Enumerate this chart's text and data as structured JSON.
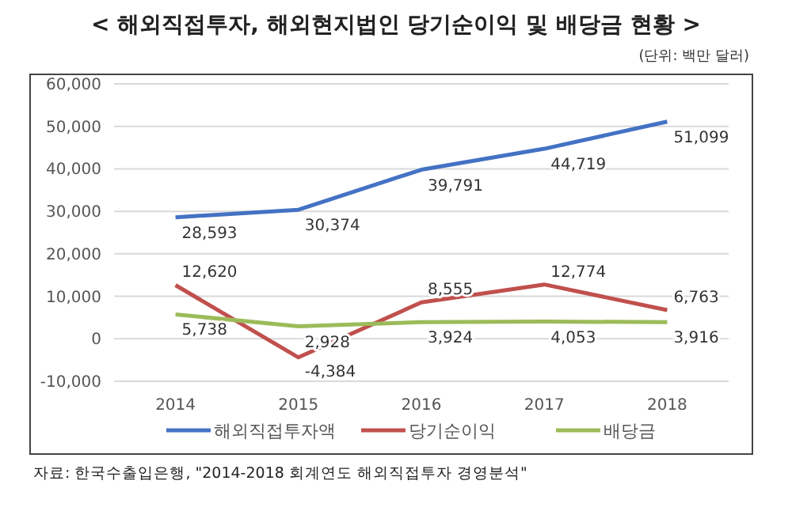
{
  "chart_data": {
    "type": "line",
    "title": "< 해외직접투자, 해외현지법인 당기순이익 및 배당금 현황 >",
    "subtitle": "(단위: 백만 달러)",
    "categories": [
      "2014",
      "2015",
      "2016",
      "2017",
      "2018"
    ],
    "series": [
      {
        "name": "해외직접투자액",
        "color": "#4472c4",
        "values": [
          28593,
          30374,
          39791,
          44719,
          51099
        ],
        "value_labels": [
          "28,593",
          "30,374",
          "39,791",
          "44,719",
          "51,099"
        ]
      },
      {
        "name": "당기순이익",
        "color": "#c0504d",
        "values": [
          12620,
          -4384,
          8555,
          12774,
          6763
        ],
        "value_labels": [
          "12,620",
          "-4,384",
          "8,555",
          "12,774",
          "6,763"
        ]
      },
      {
        "name": "배당금",
        "color": "#9bbb59",
        "values": [
          5738,
          2928,
          3924,
          4053,
          3916
        ],
        "value_labels": [
          "5,738",
          "2,928",
          "3,924",
          "4,053",
          "3,916"
        ]
      }
    ],
    "ylim": [
      -10000,
      60000
    ],
    "yticks": [
      {
        "value": -10000,
        "label": "-10,000"
      },
      0,
      {
        "value": 10000,
        "label": "10,000"
      },
      {
        "value": 20000,
        "label": "20,000"
      },
      {
        "value": 30000,
        "label": "30,000"
      },
      {
        "value": 40000,
        "label": "40,000"
      },
      {
        "value": 50000,
        "label": "50,000"
      },
      {
        "value": 60000,
        "label": "60,000"
      }
    ],
    "grid": "y",
    "legend": "bottom",
    "marker": "none",
    "line_style": "solid",
    "annotations": [
      "자료: 한국수출입은행, \"2014-2018 회계연도 해외직접투자 경영분석\""
    ]
  }
}
